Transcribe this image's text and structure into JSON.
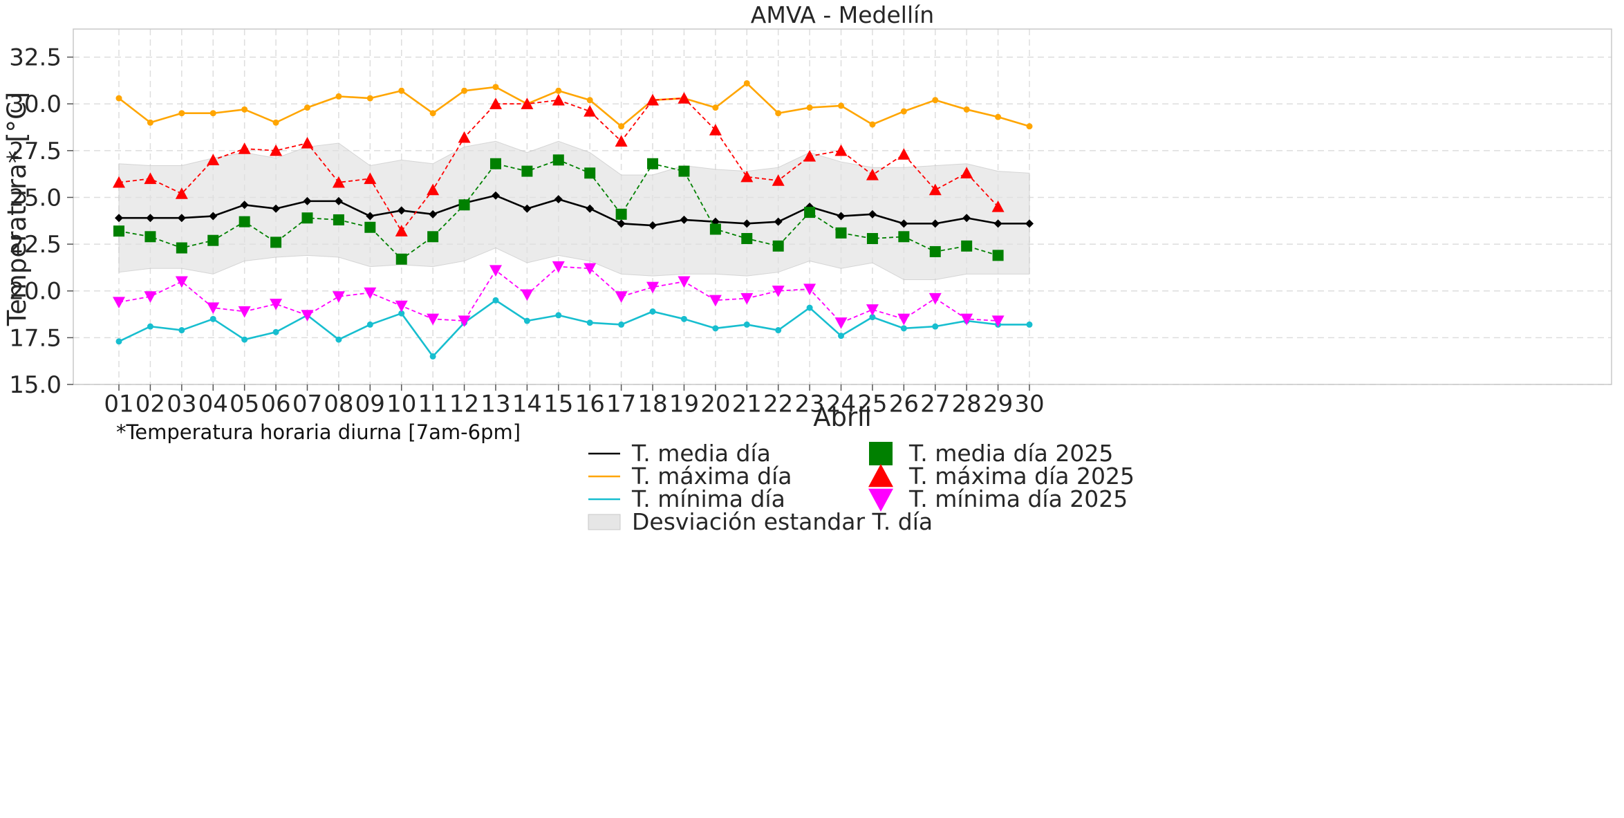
{
  "chart_data": {
    "type": "line",
    "title": "AMVA - Medellín",
    "xlabel": "Abril",
    "ylabel": "Temperatura* [°C]",
    "footnote": "*Temperatura horaria diurna [7am-6pm]",
    "categories": [
      "01",
      "02",
      "03",
      "04",
      "05",
      "06",
      "07",
      "08",
      "09",
      "10",
      "11",
      "12",
      "13",
      "14",
      "15",
      "16",
      "17",
      "18",
      "19",
      "20",
      "21",
      "22",
      "23",
      "24",
      "25",
      "26",
      "27",
      "28",
      "29",
      "30"
    ],
    "ylim": [
      15.0,
      34.0
    ],
    "yticks": [
      "15.0",
      "17.5",
      "20.0",
      "22.5",
      "25.0",
      "27.5",
      "30.0",
      "32.5"
    ],
    "grid": true,
    "legend_position": "bottom-right",
    "band": {
      "name": "Desviación estandar T. día",
      "color": "#d9d9d9",
      "upper": [
        26.8,
        26.7,
        26.7,
        27.1,
        27.4,
        27.1,
        27.7,
        27.9,
        26.7,
        27.0,
        26.8,
        27.7,
        28.0,
        27.4,
        28.0,
        27.4,
        26.2,
        26.2,
        26.7,
        26.5,
        26.4,
        26.6,
        27.4,
        26.9,
        26.6,
        26.6,
        26.7,
        26.8,
        26.4,
        26.3
      ],
      "lower": [
        21.0,
        21.2,
        21.2,
        20.9,
        21.6,
        21.8,
        21.9,
        21.8,
        21.3,
        21.4,
        21.3,
        21.6,
        22.3,
        21.5,
        21.9,
        21.6,
        20.9,
        20.8,
        20.9,
        20.9,
        20.8,
        21.0,
        21.6,
        21.2,
        21.5,
        20.6,
        20.6,
        20.9,
        20.9,
        20.9
      ]
    },
    "series": [
      {
        "name": "T. media día",
        "color": "#000000",
        "style": "solid",
        "marker": "diamond",
        "values": [
          23.9,
          23.9,
          23.9,
          24.0,
          24.6,
          24.4,
          24.8,
          24.8,
          24.0,
          24.3,
          24.1,
          24.7,
          25.1,
          24.4,
          24.9,
          24.4,
          23.6,
          23.5,
          23.8,
          23.7,
          23.6,
          23.7,
          24.5,
          24.0,
          24.1,
          23.6,
          23.6,
          23.9,
          23.6,
          23.6
        ]
      },
      {
        "name": "T. máxima día",
        "color": "#ffa500",
        "style": "solid",
        "marker": "circle",
        "values": [
          30.3,
          29.0,
          29.5,
          29.5,
          29.7,
          29.0,
          29.8,
          30.4,
          30.3,
          30.7,
          29.5,
          30.7,
          30.9,
          30.0,
          30.7,
          30.2,
          28.8,
          30.2,
          30.3,
          29.8,
          31.1,
          29.5,
          29.8,
          29.9,
          28.9,
          29.6,
          30.2,
          29.7,
          29.3,
          28.8
        ]
      },
      {
        "name": "T. mínima día",
        "color": "#17becf",
        "style": "solid",
        "marker": "circle",
        "values": [
          17.3,
          18.1,
          17.9,
          18.5,
          17.4,
          17.8,
          18.7,
          17.4,
          18.2,
          18.8,
          16.5,
          18.3,
          19.5,
          18.4,
          18.7,
          18.3,
          18.2,
          18.9,
          18.5,
          18.0,
          18.2,
          17.9,
          19.1,
          17.6,
          18.6,
          18.0,
          18.1,
          18.4,
          18.2,
          18.2
        ]
      },
      {
        "name": "T. media día 2025",
        "color": "#008000",
        "style": "dashed",
        "marker": "square",
        "values": [
          23.2,
          22.9,
          22.3,
          22.7,
          23.7,
          22.6,
          23.9,
          23.8,
          23.4,
          21.7,
          22.9,
          24.6,
          26.8,
          26.4,
          27.0,
          26.3,
          24.1,
          26.8,
          26.4,
          23.3,
          22.8,
          22.4,
          24.2,
          23.1,
          22.8,
          22.9,
          22.1,
          22.4,
          21.9,
          null
        ]
      },
      {
        "name": "T. máxima día 2025",
        "color": "#ff0000",
        "style": "dashed",
        "marker": "triangle-up",
        "values": [
          25.8,
          26.0,
          25.2,
          27.0,
          27.6,
          27.5,
          27.9,
          25.8,
          26.0,
          23.2,
          25.4,
          28.2,
          30.0,
          30.0,
          30.2,
          29.6,
          28.0,
          30.2,
          30.3,
          28.6,
          26.1,
          25.9,
          27.2,
          27.5,
          26.2,
          27.3,
          25.4,
          26.3,
          24.5,
          null
        ]
      },
      {
        "name": "T. mínima día 2025",
        "color": "#ff00ff",
        "style": "dashed",
        "marker": "triangle-down",
        "values": [
          19.4,
          19.7,
          20.5,
          19.1,
          18.9,
          19.3,
          18.7,
          19.7,
          19.9,
          19.2,
          18.5,
          18.4,
          21.1,
          19.8,
          21.3,
          21.2,
          19.7,
          20.2,
          20.5,
          19.5,
          19.6,
          20.0,
          20.1,
          18.3,
          19.0,
          18.5,
          19.6,
          18.5,
          18.4,
          null
        ]
      }
    ]
  }
}
